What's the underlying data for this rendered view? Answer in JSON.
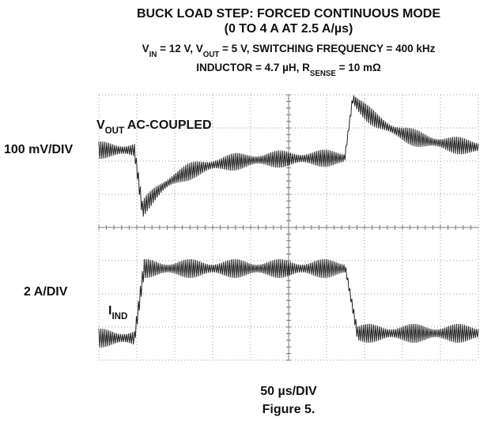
{
  "title": [
    [
      {
        "text": "BUCK LOAD STEP: FORCED CONTINUOUS MODE"
      }
    ],
    [
      {
        "text": "(0 TO 4 A AT 2.5 A/µs)"
      }
    ]
  ],
  "subtitle": [
    [
      {
        "text": "V"
      },
      {
        "text": "IN",
        "sub": true
      },
      {
        "text": " = 12 V, V"
      },
      {
        "text": "OUT",
        "sub": true
      },
      {
        "text": " = 5 V, SWITCHING FREQUENCY = 400 kHz"
      }
    ],
    [
      {
        "text": "INDUCTOR = 4.7 µH, R"
      },
      {
        "text": "SENSE",
        "sub": true
      },
      {
        "text": " = 10 mΩ"
      }
    ]
  ],
  "channel_1_label": [
    {
      "text": "V"
    },
    {
      "text": "OUT",
      "sub": true
    },
    {
      "text": " AC-COUPLED"
    }
  ],
  "channel_1_scale": "100 mV/DIV",
  "channel_2_label": [
    {
      "text": "I"
    },
    {
      "text": "IND",
      "sub": true
    }
  ],
  "channel_2_scale": "2 A/DIV",
  "time_scale": "50 µs/DIV",
  "caption": "Figure 5."
}
